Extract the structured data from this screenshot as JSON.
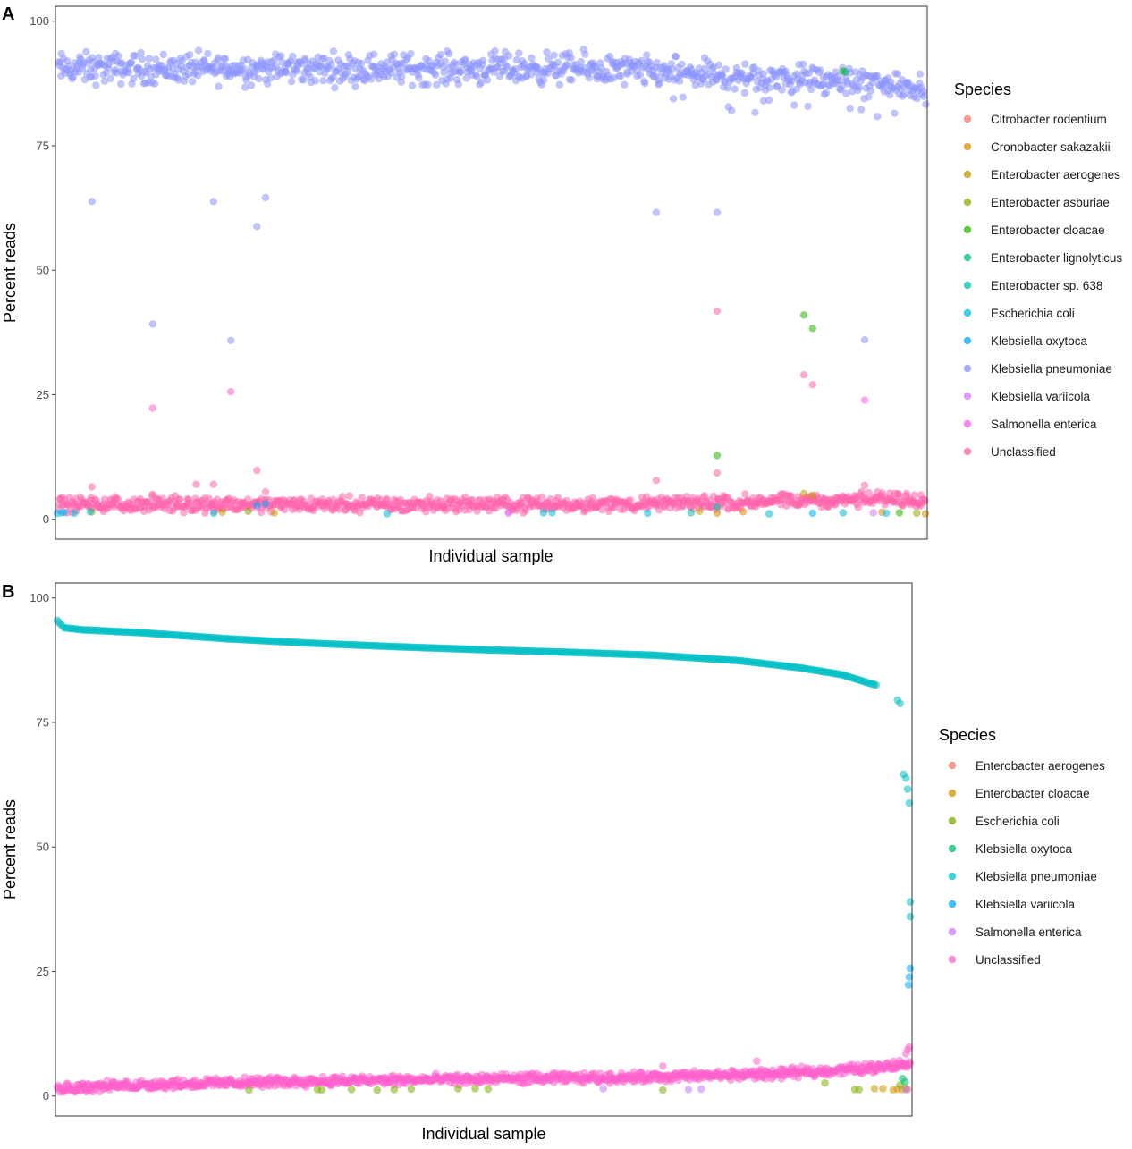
{
  "chart_data": [
    {
      "type": "scatter",
      "panel_label": "A",
      "xlabel": "Individual sample",
      "ylabel": "Percent reads",
      "ylim": [
        -4,
        103
      ],
      "yticks": [
        0,
        25,
        50,
        75,
        100
      ],
      "xticks": [],
      "n_samples": 1000,
      "grid": false,
      "legend_placement": "right",
      "legend_title": "Species",
      "series": [
        {
          "name": "Citrobacter rodentium",
          "color": "#F8766D",
          "points": []
        },
        {
          "name": "Cronobacter sakazakii",
          "color": "#E18A00",
          "points": [
            [
              760,
              1.2
            ],
            [
              790,
              1.5
            ],
            [
              950,
              1.4
            ],
            [
              1000,
              1.1
            ]
          ]
        },
        {
          "name": "Enterobacter aerogenes",
          "color": "#BE9C00",
          "points": [
            [
              40,
              1.5
            ],
            [
              190,
              1.4
            ],
            [
              250,
              1.3
            ],
            [
              740,
              1.6
            ],
            [
              860,
              5.2
            ],
            [
              870,
              4.8
            ]
          ]
        },
        {
          "name": "Enterobacter asburiae",
          "color": "#8CAB00",
          "points": [
            [
              220,
              1.6
            ],
            [
              990,
              1.2
            ]
          ]
        },
        {
          "name": "Enterobacter cloacae",
          "color": "#24B700",
          "points": [
            [
              760,
              12.8
            ],
            [
              860,
              41.0
            ],
            [
              870,
              38.3
            ],
            [
              905,
              90.0
            ],
            [
              970,
              1.3
            ]
          ]
        },
        {
          "name": "Enterobacter lignolyticus",
          "color": "#00BE70",
          "points": [
            [
              908,
              89.8
            ]
          ]
        },
        {
          "name": "Enterobacter sp. 638",
          "color": "#00C1AB",
          "points": [
            [
              730,
              1.3
            ],
            [
              760,
              2.5
            ]
          ]
        },
        {
          "name": "Escherichia coli",
          "color": "#00BBDA",
          "points": [
            [
              5,
              1.3
            ],
            [
              20,
              1.2
            ],
            [
              38,
              1.5
            ],
            [
              180,
              1.2
            ],
            [
              380,
              1.1
            ],
            [
              560,
              1.3
            ],
            [
              570,
              1.3
            ],
            [
              680,
              1.2
            ],
            [
              820,
              1.1
            ],
            [
              905,
              1.3
            ],
            [
              955,
              1.2
            ]
          ]
        },
        {
          "name": "Klebsiella oxytoca",
          "color": "#00ACFC",
          "points": [
            [
              0,
              1.2
            ],
            [
              8,
              1.4
            ],
            [
              230,
              2.8
            ],
            [
              240,
              3.1
            ],
            [
              870,
              1.2
            ]
          ]
        },
        {
          "name": "Klebsiella pneumoniae",
          "color": "#8B93FF",
          "points": [
            [
              40,
              63.8
            ],
            [
              110,
              39.2
            ],
            [
              180,
              63.8
            ],
            [
              200,
              35.9
            ],
            [
              230,
              58.8
            ],
            [
              240,
              64.6
            ],
            [
              690,
              61.6
            ],
            [
              760,
              61.6
            ],
            [
              930,
              36.0
            ]
          ],
          "bulk_band": [
            78.5,
            95.5
          ]
        },
        {
          "name": "Klebsiella variicola",
          "color": "#D575FE",
          "points": [
            [
              520,
              1.2
            ],
            [
              940,
              1.3
            ]
          ]
        },
        {
          "name": "Salmonella enterica",
          "color": "#F962DD",
          "points": [
            [
              110,
              22.3
            ],
            [
              200,
              25.6
            ],
            [
              930,
              23.9
            ]
          ]
        },
        {
          "name": "Unclassified",
          "color": "#FF65AC",
          "points": [
            [
              40,
              6.5
            ],
            [
              110,
              5.0
            ],
            [
              160,
              7.0
            ],
            [
              180,
              7.0
            ],
            [
              230,
              9.8
            ],
            [
              240,
              5.5
            ],
            [
              690,
              7.8
            ],
            [
              760,
              41.8
            ],
            [
              760,
              9.3
            ],
            [
              860,
              29.0
            ],
            [
              870,
              27.0
            ],
            [
              930,
              6.8
            ]
          ],
          "bulk_band": [
            1.0,
            6.5
          ]
        }
      ]
    },
    {
      "type": "scatter",
      "panel_label": "B",
      "xlabel": "Individual sample",
      "ylabel": "Percent reads",
      "ylim": [
        -4,
        103
      ],
      "yticks": [
        0,
        25,
        50,
        75,
        100
      ],
      "xticks": [],
      "n_samples": 1000,
      "grid": false,
      "legend_placement": "right",
      "legend_title": "Species",
      "sorted_by": "Klebsiella pneumoniae descending",
      "series": [
        {
          "name": "Enterobacter aerogenes",
          "color": "#F8766D",
          "points": [
            [
              997,
              1.3
            ]
          ]
        },
        {
          "name": "Enterobacter cloacae",
          "color": "#CD9600",
          "points": [
            [
              980,
              1.2
            ],
            [
              985,
              1.4
            ],
            [
              990,
              1.3
            ],
            [
              995,
              1.5
            ],
            [
              958,
              1.5
            ],
            [
              968,
              1.5
            ]
          ]
        },
        {
          "name": "Escherichia coli",
          "color": "#7CAE00",
          "points": [
            [
              225,
              1.2
            ],
            [
              305,
              1.3
            ],
            [
              310,
              1.2
            ],
            [
              345,
              1.3
            ],
            [
              375,
              1.2
            ],
            [
              395,
              1.3
            ],
            [
              415,
              1.4
            ],
            [
              470,
              1.5
            ],
            [
              490,
              1.5
            ],
            [
              505,
              1.4
            ],
            [
              710,
              1.2
            ],
            [
              900,
              2.6
            ],
            [
              935,
              1.3
            ],
            [
              940,
              1.3
            ],
            [
              988,
              2.2
            ]
          ]
        },
        {
          "name": "Klebsiella oxytoca",
          "color": "#00BE67",
          "points": [
            [
              991,
              3.5
            ],
            [
              994,
              2.8
            ]
          ]
        },
        {
          "name": "Klebsiella pneumoniae",
          "color": "#00BFC4",
          "curve": [
            [
              0,
              95.5
            ],
            [
              8,
              94.0
            ],
            [
              30,
              93.6
            ],
            [
              100,
              93.0
            ],
            [
              200,
              91.8
            ],
            [
              300,
              90.9
            ],
            [
              400,
              90.2
            ],
            [
              500,
              89.6
            ],
            [
              600,
              89.1
            ],
            [
              700,
              88.5
            ],
            [
              800,
              87.4
            ],
            [
              870,
              86.0
            ],
            [
              920,
              84.6
            ],
            [
              950,
              83.0
            ],
            [
              960,
              82.5
            ]
          ],
          "points": [
            [
              985,
              79.5
            ],
            [
              988,
              78.8
            ],
            [
              992,
              64.6
            ],
            [
              995,
              63.8
            ],
            [
              997,
              61.6
            ],
            [
              999,
              58.8
            ],
            [
              1000,
              39.0
            ],
            [
              1000,
              36.0
            ]
          ]
        },
        {
          "name": "Klebsiella variicola",
          "color": "#00A9FF",
          "points": [
            [
              1000,
              25.6
            ],
            [
              999,
              23.9
            ],
            [
              998,
              22.3
            ]
          ]
        },
        {
          "name": "Salmonella enterica",
          "color": "#C77CFF",
          "points": [
            [
              640,
              1.5
            ],
            [
              740,
              1.3
            ],
            [
              755,
              1.4
            ],
            [
              995,
              1.3
            ]
          ]
        },
        {
          "name": "Unclassified",
          "color": "#FF61CC",
          "points": [
            [
              710,
              6.0
            ],
            [
              820,
              7.0
            ],
            [
              995,
              8.5
            ],
            [
              999,
              9.8
            ],
            [
              997,
              9.3
            ],
            [
              1000,
              6.5
            ]
          ],
          "bulk_curve": [
            [
              0,
              1.5
            ],
            [
              100,
              2.3
            ],
            [
              300,
              3.0
            ],
            [
              500,
              3.4
            ],
            [
              700,
              3.8
            ],
            [
              850,
              4.5
            ],
            [
              950,
              5.6
            ],
            [
              1000,
              6.5
            ]
          ]
        }
      ]
    }
  ]
}
